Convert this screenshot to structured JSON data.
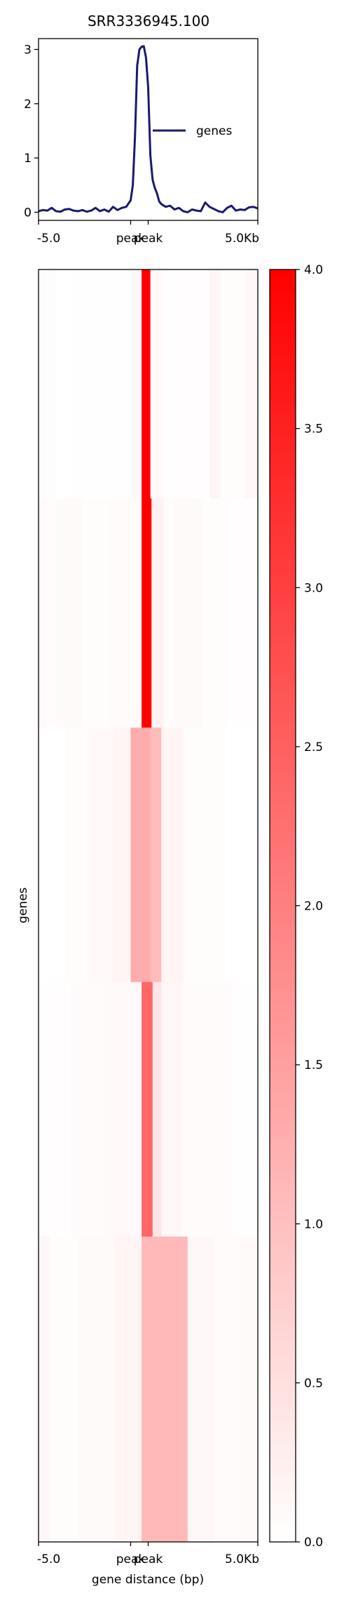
{
  "chart_data": [
    {
      "type": "line",
      "title": "SRR3336945.100",
      "xlabel": "",
      "ylabel": "",
      "xlim": [
        -5000,
        5000
      ],
      "ylim": [
        -0.15,
        3.2
      ],
      "yticks": [
        "0",
        "1",
        "2",
        "3"
      ],
      "yticks_values": [
        0,
        1,
        2,
        3
      ],
      "xticks": [
        "-5.0",
        "peak",
        "peak",
        "5.0Kb"
      ],
      "xticks_values": [
        -5000,
        -800,
        0,
        5000
      ],
      "legend": "right",
      "grid": false,
      "series": [
        {
          "name": "genes",
          "color": "#191970",
          "x": [
            -5000,
            -4800,
            -4600,
            -4400,
            -4200,
            -4000,
            -3800,
            -3600,
            -3400,
            -3200,
            -3000,
            -2800,
            -2600,
            -2400,
            -2200,
            -2000,
            -1800,
            -1600,
            -1400,
            -1200,
            -1000,
            -800,
            -700,
            -600,
            -500,
            -400,
            -300,
            -200,
            -100,
            0,
            100,
            200,
            300,
            400,
            500,
            600,
            800,
            1000,
            1200,
            1400,
            1600,
            1800,
            2000,
            2200,
            2400,
            2600,
            2800,
            3000,
            3200,
            3400,
            3600,
            3800,
            4000,
            4200,
            4400,
            4600,
            4800,
            5000
          ],
          "values": [
            0.02,
            0.04,
            0.03,
            0.08,
            0.02,
            0.01,
            0.05,
            0.06,
            0.03,
            0.02,
            0.04,
            0.01,
            0.03,
            0.08,
            0.02,
            0.05,
            0.01,
            0.1,
            0.04,
            0.08,
            0.1,
            0.22,
            0.5,
            1.4,
            2.7,
            3.0,
            3.05,
            3.06,
            2.85,
            2.3,
            1.05,
            0.6,
            0.45,
            0.35,
            0.2,
            0.15,
            0.1,
            0.12,
            0.05,
            0.08,
            0.02,
            0.0,
            0.05,
            0.03,
            0.02,
            0.18,
            0.1,
            0.06,
            0.02,
            0.0,
            0.08,
            0.12,
            0.03,
            0.05,
            0.04,
            0.09,
            0.1,
            0.07
          ]
        }
      ]
    },
    {
      "type": "heatmap",
      "xlabel": "gene distance (bp)",
      "ylabel": "genes",
      "xlim": [
        -5000,
        5000
      ],
      "xticks": [
        "-5.0",
        "peak",
        "peak",
        "5.0Kb"
      ],
      "xticks_values": [
        -5000,
        -800,
        0,
        5000
      ],
      "colorbar": {
        "range": [
          0.0,
          4.0
        ],
        "ticks": [
          "0.0",
          "0.5",
          "1.0",
          "1.5",
          "2.0",
          "2.5",
          "3.0",
          "3.5",
          "4.0"
        ],
        "tick_values": [
          0,
          0.5,
          1,
          1.5,
          2,
          2.5,
          3,
          3.5,
          4
        ],
        "low_color": "#ffffff",
        "high_color": "#ff0000"
      },
      "row_groups": [
        {
          "fraction": 0.18,
          "columns": [
            [
              -5000,
              -4200,
              0.05
            ],
            [
              -4200,
              -3600,
              0.0
            ],
            [
              -3600,
              -800,
              0.02
            ],
            [
              -800,
              -300,
              0.1
            ],
            [
              -300,
              100,
              4.0
            ],
            [
              100,
              700,
              0.1
            ],
            [
              700,
              2800,
              0.03
            ],
            [
              2800,
              3300,
              0.15
            ],
            [
              3300,
              4400,
              0.05
            ],
            [
              4400,
              5000,
              0.12
            ]
          ]
        },
        {
          "fraction": 0.18,
          "columns": [
            [
              -5000,
              -4600,
              0.1
            ],
            [
              -4600,
              -4200,
              0.05
            ],
            [
              -4200,
              -3000,
              0.08
            ],
            [
              -3000,
              -1800,
              0.05
            ],
            [
              -1800,
              -300,
              0.06
            ],
            [
              -300,
              150,
              4.0
            ],
            [
              150,
              700,
              0.2
            ],
            [
              700,
              1200,
              0.05
            ],
            [
              1200,
              2500,
              0.08
            ],
            [
              2500,
              3600,
              0.05
            ],
            [
              3600,
              5000,
              0.03
            ]
          ]
        },
        {
          "fraction": 0.2,
          "columns": [
            [
              -5000,
              -3800,
              0.0
            ],
            [
              -3800,
              -2800,
              0.04
            ],
            [
              -2800,
              -1600,
              0.1
            ],
            [
              -1600,
              -800,
              0.15
            ],
            [
              -800,
              100,
              1.3
            ],
            [
              100,
              600,
              1.05
            ],
            [
              600,
              1600,
              0.15
            ],
            [
              1600,
              3500,
              0.05
            ],
            [
              3500,
              5000,
              0.0
            ]
          ]
        },
        {
          "fraction": 0.2,
          "columns": [
            [
              -5000,
              -3500,
              0.03
            ],
            [
              -3500,
              -2000,
              0.06
            ],
            [
              -2000,
              -300,
              0.1
            ],
            [
              -300,
              200,
              2.4
            ],
            [
              200,
              600,
              0.4
            ],
            [
              600,
              1500,
              0.12
            ],
            [
              1500,
              3800,
              0.06
            ],
            [
              3800,
              5000,
              0.02
            ]
          ]
        },
        {
          "fraction": 0.24,
          "columns": [
            [
              -5000,
              -4500,
              0.12
            ],
            [
              -4500,
              -3200,
              0.05
            ],
            [
              -3200,
              -1500,
              0.08
            ],
            [
              -1500,
              -300,
              0.15
            ],
            [
              -300,
              1800,
              1.1
            ],
            [
              1800,
              3000,
              0.12
            ],
            [
              3000,
              4300,
              0.06
            ],
            [
              4300,
              5000,
              0.1
            ]
          ]
        }
      ]
    }
  ]
}
